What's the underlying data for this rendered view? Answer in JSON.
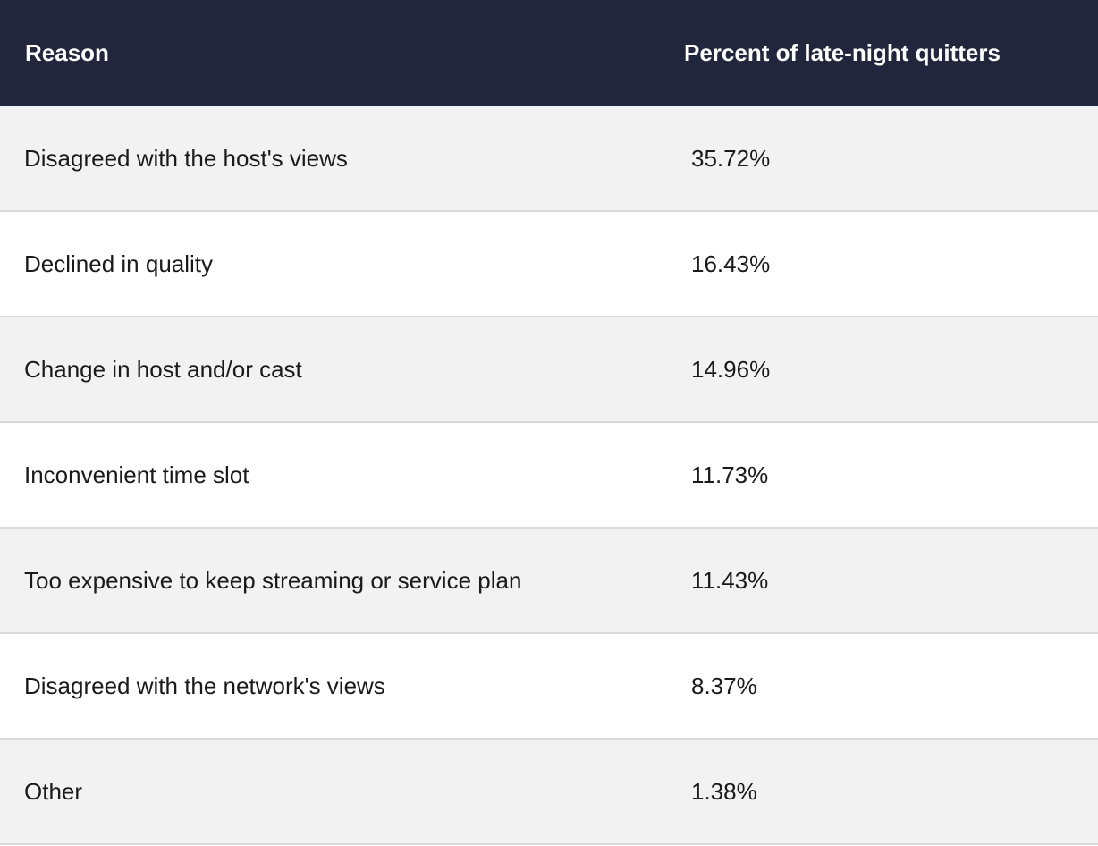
{
  "header": {
    "reason": "Reason",
    "percent": "Percent of late-night quitters"
  },
  "rows": [
    {
      "reason": "Disagreed with the host's views",
      "percent": "35.72%"
    },
    {
      "reason": "Declined in quality",
      "percent": "16.43%"
    },
    {
      "reason": "Change in host and/or cast",
      "percent": "14.96%"
    },
    {
      "reason": "Inconvenient time slot",
      "percent": "11.73%"
    },
    {
      "reason": "Too expensive to keep streaming or service plan",
      "percent": "11.43%"
    },
    {
      "reason": "Disagreed with the network's views",
      "percent": "8.37%"
    },
    {
      "reason": "Other",
      "percent": "1.38%"
    }
  ],
  "colors": {
    "header_bg": "#21263d",
    "row_alt_bg": "#f2f2f2",
    "divider": "#d9d9d9"
  }
}
